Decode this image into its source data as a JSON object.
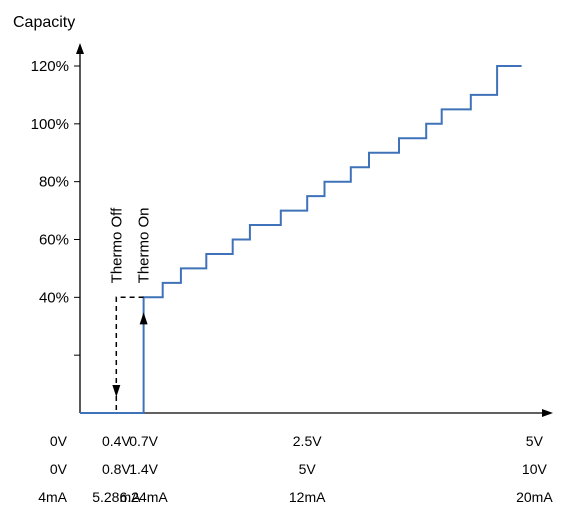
{
  "chart_data": {
    "type": "line",
    "title": "",
    "ylabel": "Capacity",
    "xlabel": "",
    "ylim": [
      0,
      120
    ],
    "y_ticks": [
      "40%",
      "60%",
      "80%",
      "100%",
      "120%"
    ],
    "y_tick_values": [
      40,
      60,
      80,
      100,
      120
    ],
    "y_minor_tick_values": [
      20
    ],
    "x_ticks": [
      {
        "v": "0V",
        "v2": "0V",
        "ma": "4mA"
      },
      {
        "v": "0.4V",
        "v2": "0.8V",
        "ma": "5.28mA"
      },
      {
        "v": "0.7V",
        "v2": "1.4V",
        "ma": "6.24mA"
      },
      {
        "v": "2.5V",
        "v2": "5V",
        "ma": "12mA"
      },
      {
        "v": "5V",
        "v2": "10V",
        "ma": "20mA"
      }
    ],
    "x_tick_values": [
      0,
      0.4,
      0.7,
      2.5,
      5
    ],
    "xlim": [
      0,
      5.15
    ],
    "series": [
      {
        "name": "",
        "color": "#3f72b8",
        "style": "solid",
        "points": [
          [
            0,
            0
          ],
          [
            0.7,
            0
          ],
          [
            0.7,
            40
          ],
          [
            0.91,
            40
          ],
          [
            0.91,
            45
          ],
          [
            1.11,
            45
          ],
          [
            1.11,
            50
          ],
          [
            1.39,
            50
          ],
          [
            1.39,
            55
          ],
          [
            1.68,
            55
          ],
          [
            1.68,
            60
          ],
          [
            1.87,
            60
          ],
          [
            1.87,
            65
          ],
          [
            2.21,
            65
          ],
          [
            2.21,
            70
          ],
          [
            2.5,
            70
          ],
          [
            2.5,
            75
          ],
          [
            2.69,
            75
          ],
          [
            2.69,
            80
          ],
          [
            2.98,
            80
          ],
          [
            2.98,
            85
          ],
          [
            3.18,
            85
          ],
          [
            3.18,
            90
          ],
          [
            3.51,
            90
          ],
          [
            3.51,
            95
          ],
          [
            3.81,
            95
          ],
          [
            3.81,
            100
          ],
          [
            3.98,
            100
          ],
          [
            3.98,
            105
          ],
          [
            4.3,
            105
          ],
          [
            4.3,
            110
          ],
          [
            4.59,
            110
          ],
          [
            4.59,
            120
          ],
          [
            4.86,
            120
          ]
        ]
      },
      {
        "name": "",
        "color": "#000000",
        "style": "dashed",
        "points": [
          [
            0.7,
            40
          ],
          [
            0.4,
            40
          ],
          [
            0.4,
            0
          ]
        ]
      }
    ],
    "annotations": [
      {
        "text": "Thermo Off",
        "x": 0.4,
        "y": 40
      },
      {
        "text": "Thermo On",
        "x": 0.7,
        "y": 40
      }
    ]
  }
}
